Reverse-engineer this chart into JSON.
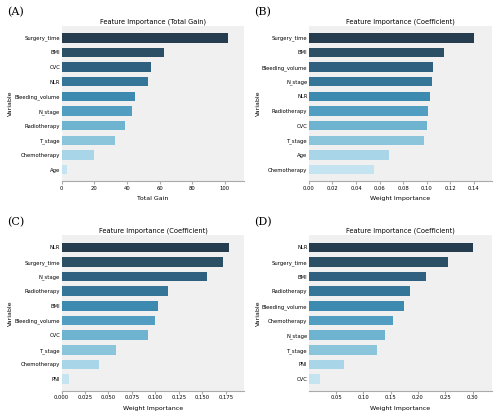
{
  "panels": [
    {
      "label": "A",
      "title": "Feature Importance (Total Gain)",
      "xlabel": "Total Gain",
      "variables": [
        "Surgery_time",
        "BMI",
        "CVC",
        "NLR",
        "Bleeding_volume",
        "N_stage",
        "Radiotherapy",
        "T_stage",
        "Chemotherapy",
        "Age"
      ],
      "values": [
        102,
        63,
        55,
        53,
        45,
        43,
        39,
        33,
        20,
        3
      ],
      "xlim": [
        0,
        112
      ],
      "xticks": [
        0,
        20,
        40,
        60,
        80,
        100
      ]
    },
    {
      "label": "B",
      "title": "Feature Importance (Coefficient)",
      "xlabel": "Weight Importance",
      "variables": [
        "Surgery_time",
        "BMI",
        "Bleeding_volume",
        "N_stage",
        "NLR",
        "Radiotherapy",
        "CVC",
        "T_stage",
        "Age",
        "Chemotherapy"
      ],
      "values": [
        0.14,
        0.115,
        0.105,
        0.104,
        0.103,
        0.101,
        0.1,
        0.098,
        0.068,
        0.055
      ],
      "xlim": [
        0,
        0.155
      ],
      "xticks": [
        0.0,
        0.02,
        0.04,
        0.06,
        0.08,
        0.1,
        0.12,
        0.14
      ]
    },
    {
      "label": "C",
      "title": "Feature Importance (Coefficient)",
      "xlabel": "Weight Importance",
      "variables": [
        "NLR",
        "Surgery_time",
        "N_stage",
        "Radiotherapy",
        "BMI",
        "Bleeding_volume",
        "CVC",
        "T_stage",
        "Chemotherapy",
        "PNI"
      ],
      "values": [
        0.178,
        0.172,
        0.155,
        0.113,
        0.103,
        0.1,
        0.092,
        0.058,
        0.04,
        0.008
      ],
      "xlim": [
        0,
        0.195
      ],
      "xticks": [
        0.0,
        0.025,
        0.05,
        0.075,
        0.1,
        0.125,
        0.15,
        0.175
      ]
    },
    {
      "label": "D",
      "title": "Feature Importance (Coefficient)",
      "xlabel": "Weight Importance",
      "variables": [
        "NLR",
        "Surgery_time",
        "BMI",
        "Radiotherapy",
        "Bleeding_volume",
        "Chemotherapy",
        "N_stage",
        "T_stage",
        "PNI",
        "CVC"
      ],
      "values": [
        0.3,
        0.255,
        0.215,
        0.185,
        0.175,
        0.155,
        0.14,
        0.125,
        0.065,
        0.02
      ],
      "xlim": [
        0,
        0.335
      ],
      "xticks": [
        0.05,
        0.1,
        0.15,
        0.2,
        0.25,
        0.3
      ]
    }
  ],
  "color_palette": [
    "#253d4e",
    "#2b4f65",
    "#2f6080",
    "#357598",
    "#3d8ab0",
    "#529ec2",
    "#6eb3d0",
    "#8ac5dc",
    "#a8d5e8",
    "#c5e4f2"
  ],
  "bg_color": "#f0f0f0"
}
